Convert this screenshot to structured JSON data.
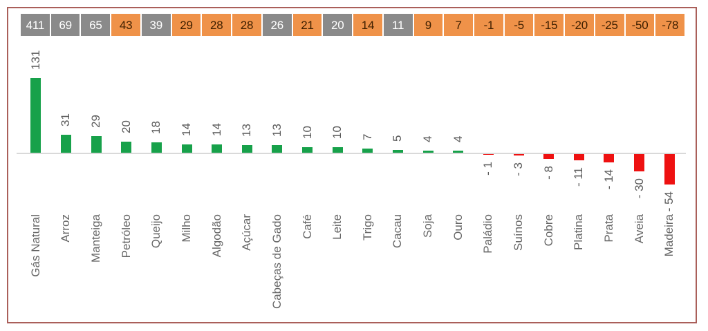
{
  "chart_data": {
    "type": "bar",
    "title": "",
    "xlabel": "",
    "ylabel": "",
    "ylim": [
      -60,
      140
    ],
    "grid": false,
    "legend": "none",
    "categories": [
      "Gás Natural",
      "Arroz",
      "Manteiga",
      "Petróleo",
      "Queijo",
      "Milho",
      "Algodão",
      "Açúcar",
      "Cabeças de Gado",
      "Café",
      "Leite",
      "Trigo",
      "Cacau",
      "Soja",
      "Ouro",
      "Paládio",
      "Suínos",
      "Cobre",
      "Platina",
      "Prata",
      "Aveia",
      "Madeira"
    ],
    "series": [
      {
        "name": "header-row-values",
        "values": [
          411,
          69,
          65,
          43,
          39,
          29,
          28,
          28,
          26,
          21,
          20,
          14,
          11,
          9,
          7,
          -1,
          -5,
          -15,
          -20,
          -25,
          -50,
          -78
        ],
        "box_styles": [
          "gray",
          "gray",
          "gray",
          "orange",
          "gray",
          "orange",
          "orange",
          "orange",
          "gray",
          "orange",
          "gray",
          "orange",
          "gray",
          "orange",
          "orange",
          "orange",
          "orange",
          "orange",
          "orange",
          "orange",
          "orange",
          "orange"
        ]
      },
      {
        "name": "bar-values",
        "values": [
          131,
          31,
          29,
          20,
          18,
          14,
          14,
          13,
          13,
          10,
          10,
          7,
          5,
          4,
          4,
          -1,
          -3,
          -8,
          -11,
          -14,
          -30,
          -54
        ],
        "labels": [
          "131",
          "31",
          "29",
          "20",
          "18",
          "14",
          "14",
          "13",
          "13",
          "10",
          "10",
          "7",
          "5",
          "4",
          "4",
          "- 1",
          "- 3",
          "- 8",
          "- 11",
          "- 14",
          "- 30",
          "- 54"
        ]
      }
    ],
    "colors": {
      "positive_bar": "#17a14a",
      "negative_bar": "#ee1111",
      "header_gray": "#8a8a8a",
      "header_orange": "#ef9249",
      "header_text_on_gray": "#ffffff",
      "header_text_on_orange": "#402000",
      "frame_border": "#aa5f5a",
      "axis_line": "#d9d9d9",
      "value_label": "#595959",
      "category_label": "#666666"
    }
  }
}
